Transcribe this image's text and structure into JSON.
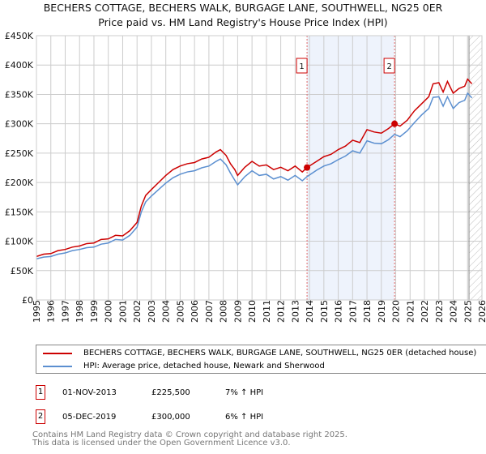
{
  "title": "BECHERS COTTAGE, BECHERS WALK, BURGAGE LANE, SOUTHWELL, NG25 0ER",
  "subtitle": "Price paid vs. HM Land Registry's House Price Index (HPI)",
  "chart_data": {
    "type": "line",
    "ylim": [
      0,
      450000
    ],
    "xlim": [
      1995,
      2026
    ],
    "yticks": [
      0,
      50000,
      100000,
      150000,
      200000,
      250000,
      300000,
      350000,
      400000,
      450000
    ],
    "ytick_labels": [
      "£0",
      "£50K",
      "£100K",
      "£150K",
      "£200K",
      "£250K",
      "£300K",
      "£350K",
      "£400K",
      "£450K"
    ],
    "xticks": [
      1995,
      1996,
      1997,
      1998,
      1999,
      2000,
      2001,
      2002,
      2003,
      2004,
      2005,
      2006,
      2007,
      2008,
      2009,
      2010,
      2011,
      2012,
      2013,
      2014,
      2015,
      2016,
      2017,
      2018,
      2019,
      2020,
      2021,
      2022,
      2023,
      2024,
      2025,
      2026
    ],
    "grid": true,
    "highlight_span": [
      2013.83,
      2019.92
    ],
    "forecast_hatch_from": 2025.1,
    "series": [
      {
        "name": "BECHERS COTTAGE, BECHERS WALK, BURGAGE LANE, SOUTHWELL, NG25 0ER (detached house)",
        "color": "#cc0000",
        "x": [
          1995,
          1995.5,
          1996,
          1996.5,
          1997,
          1997.5,
          1998,
          1998.5,
          1999,
          1999.5,
          2000,
          2000.5,
          2001,
          2001.5,
          2002,
          2002.3,
          2002.6,
          2003,
          2003.5,
          2004,
          2004.5,
          2005,
          2005.5,
          2006,
          2006.5,
          2007,
          2007.5,
          2007.8,
          2008.2,
          2008.5,
          2008.8,
          2009,
          2009.5,
          2010,
          2010.5,
          2011,
          2011.5,
          2012,
          2012.5,
          2013,
          2013.5,
          2013.83,
          2014.5,
          2015,
          2015.5,
          2016,
          2016.5,
          2017,
          2017.5,
          2018,
          2018.5,
          2019,
          2019.5,
          2019.92,
          2020.3,
          2020.8,
          2021.3,
          2021.8,
          2022.3,
          2022.6,
          2023,
          2023.3,
          2023.6,
          2024,
          2024.4,
          2024.8,
          2025,
          2025.3
        ],
        "y": [
          74000,
          78000,
          79000,
          84000,
          86000,
          90000,
          92000,
          96000,
          97000,
          103000,
          104000,
          110000,
          109000,
          118000,
          132000,
          160000,
          178000,
          188000,
          200000,
          212000,
          222000,
          228000,
          232000,
          234000,
          240000,
          243000,
          252000,
          256000,
          246000,
          232000,
          222000,
          212000,
          226000,
          236000,
          228000,
          230000,
          222000,
          226000,
          220000,
          228000,
          218000,
          225500,
          236000,
          244000,
          248000,
          256000,
          262000,
          272000,
          268000,
          290000,
          286000,
          284000,
          292000,
          300000,
          296000,
          306000,
          322000,
          334000,
          346000,
          368000,
          370000,
          354000,
          372000,
          352000,
          360000,
          364000,
          376000,
          368000
        ]
      },
      {
        "name": "HPI: Average price, detached house, Newark and Sherwood",
        "color": "#5b8fd0",
        "x": [
          1995,
          1995.5,
          1996,
          1996.5,
          1997,
          1997.5,
          1998,
          1998.5,
          1999,
          1999.5,
          2000,
          2000.5,
          2001,
          2001.5,
          2002,
          2002.3,
          2002.6,
          2003,
          2003.5,
          2004,
          2004.5,
          2005,
          2005.5,
          2006,
          2006.5,
          2007,
          2007.5,
          2007.8,
          2008.2,
          2008.5,
          2008.8,
          2009,
          2009.5,
          2010,
          2010.5,
          2011,
          2011.5,
          2012,
          2012.5,
          2013,
          2013.5,
          2013.83,
          2014.5,
          2015,
          2015.5,
          2016,
          2016.5,
          2017,
          2017.5,
          2018,
          2018.5,
          2019,
          2019.5,
          2019.92,
          2020.3,
          2020.8,
          2021.3,
          2021.8,
          2022.3,
          2022.6,
          2023,
          2023.3,
          2023.6,
          2024,
          2024.4,
          2024.8,
          2025,
          2025.3
        ],
        "y": [
          70000,
          73000,
          74000,
          78000,
          80000,
          84000,
          86000,
          89000,
          90000,
          95000,
          97000,
          103000,
          102000,
          110000,
          124000,
          150000,
          167000,
          177000,
          188000,
          199000,
          208000,
          214000,
          218000,
          220000,
          225000,
          228000,
          236000,
          240000,
          230000,
          216000,
          204000,
          196000,
          210000,
          220000,
          212000,
          214000,
          206000,
          210000,
          204000,
          212000,
          203000,
          210000,
          221000,
          228000,
          232000,
          239000,
          245000,
          254000,
          250000,
          271000,
          267000,
          266000,
          273000,
          282000,
          278000,
          288000,
          302000,
          315000,
          326000,
          345000,
          346000,
          330000,
          346000,
          326000,
          336000,
          340000,
          352000,
          344000
        ]
      }
    ]
  },
  "legend": {
    "red": "BECHERS COTTAGE, BECHERS WALK, BURGAGE LANE, SOUTHWELL, NG25 0ER (detached house)",
    "blue": "HPI: Average price, detached house, Newark and Sherwood"
  },
  "markers": [
    {
      "label": "1",
      "x": 2013.83,
      "y": 225500
    },
    {
      "label": "2",
      "x": 2019.92,
      "y": 300000
    }
  ],
  "transactions": [
    {
      "num": "1",
      "date": "01-NOV-2013",
      "price": "£225,500",
      "hpi": "7% ↑ HPI"
    },
    {
      "num": "2",
      "date": "05-DEC-2019",
      "price": "£300,000",
      "hpi": "6% ↑ HPI"
    }
  ],
  "footer": {
    "line1": "Contains HM Land Registry data © Crown copyright and database right 2025.",
    "line2": "This data is licensed under the Open Government Licence v3.0."
  }
}
